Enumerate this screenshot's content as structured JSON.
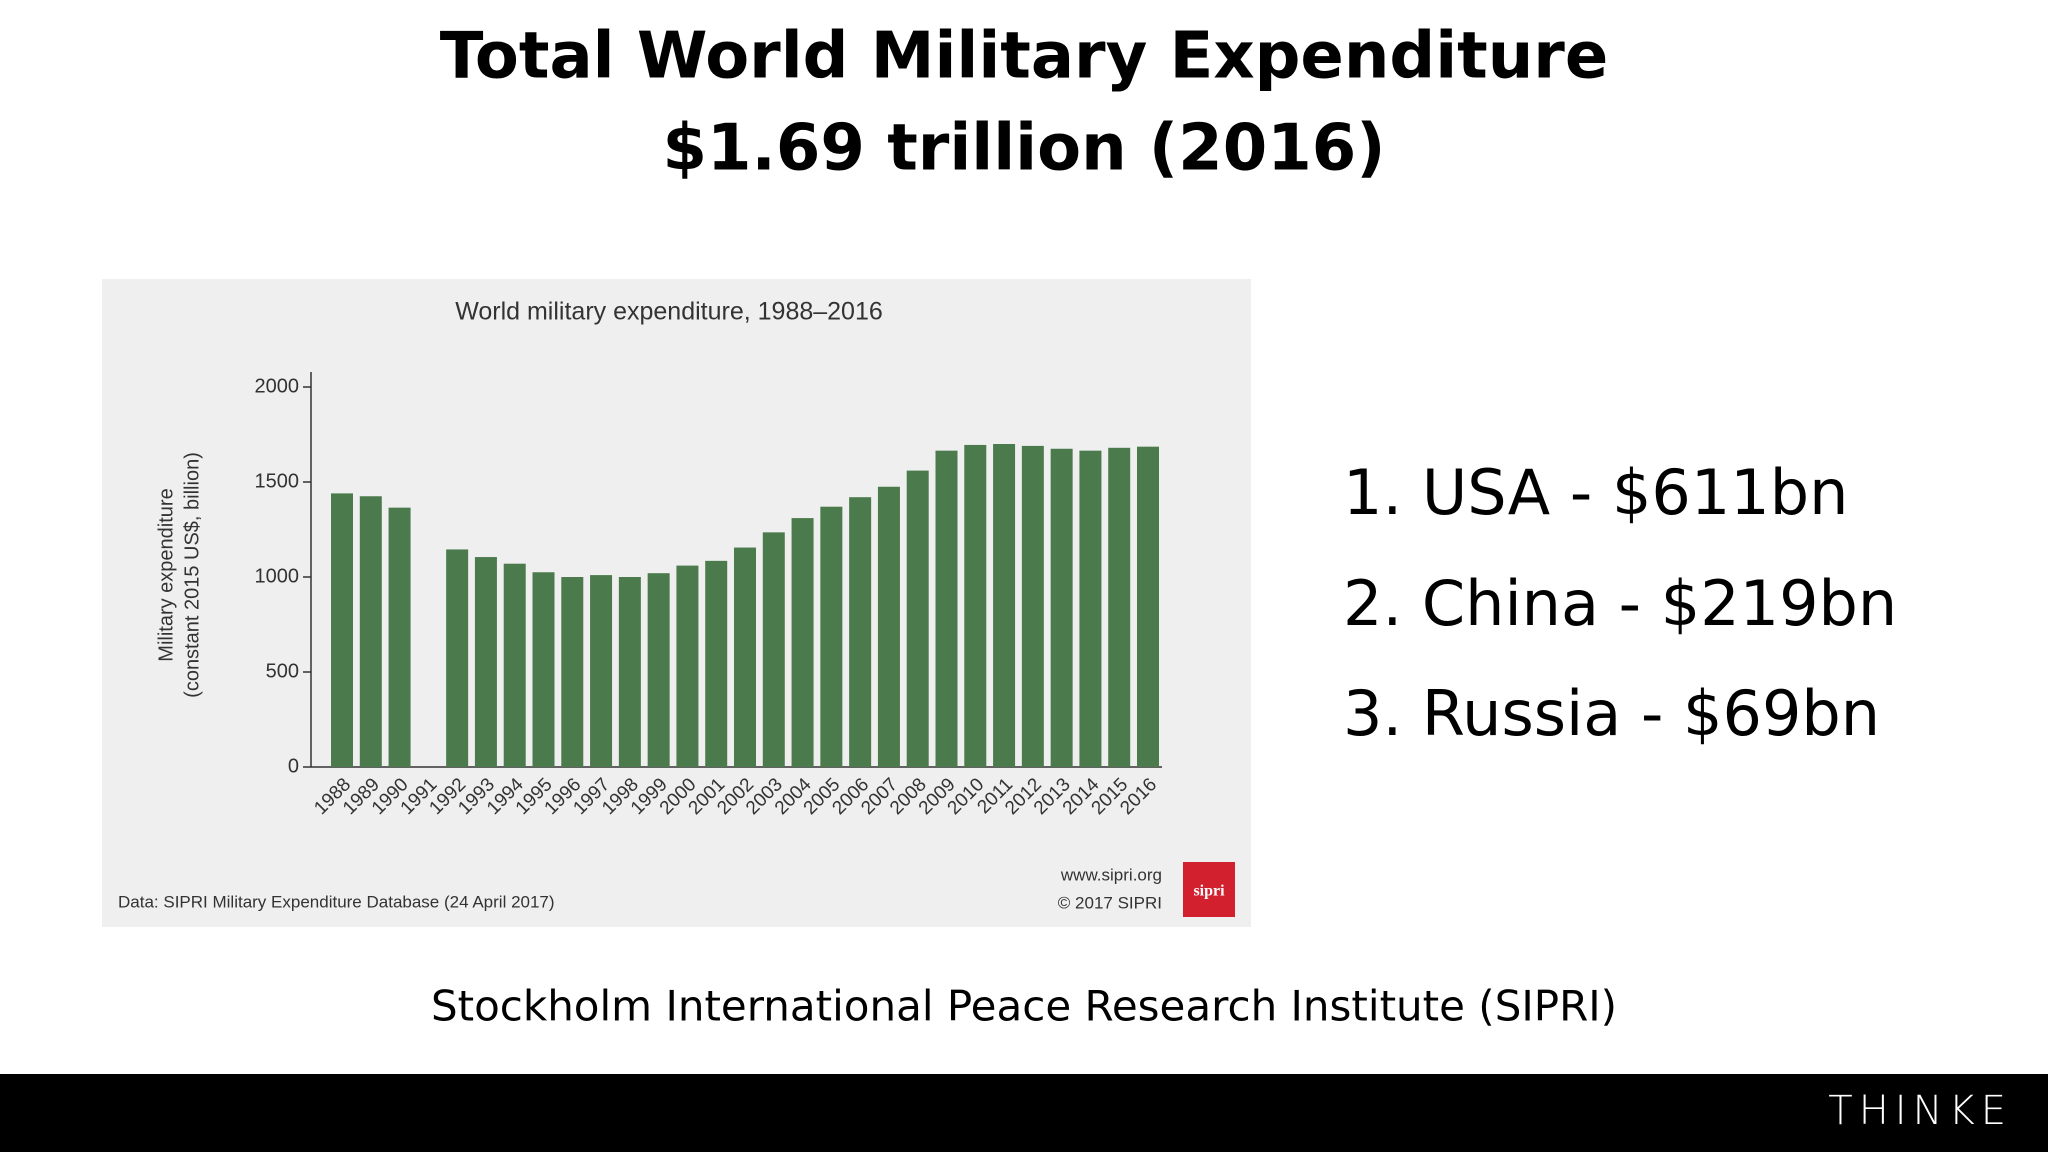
{
  "slide": {
    "title_lines": [
      "Total World Military Expenditure",
      "$1.69 trillion (2016)"
    ],
    "ranking": [
      "1. USA - $611bn",
      "2. China - $219bn",
      "3. Russia - $69bn"
    ],
    "source": "Stockholm International Peace Research Institute (SIPRI)",
    "brand": "THINKE"
  },
  "chart_data": {
    "type": "bar",
    "title": "World military expenditure, 1988–2016",
    "y_label_lines": [
      "Military expenditure",
      "(constant 2015 US$, billion)"
    ],
    "categories": [
      "1988",
      "1989",
      "1990",
      "1991",
      "1992",
      "1993",
      "1994",
      "1995",
      "1996",
      "1997",
      "1998",
      "1999",
      "2000",
      "2001",
      "2002",
      "2003",
      "2004",
      "2005",
      "2006",
      "2007",
      "2008",
      "2009",
      "2010",
      "2011",
      "2012",
      "2013",
      "2014",
      "2015",
      "2016"
    ],
    "values": [
      1440,
      1425,
      1365,
      null,
      1145,
      1105,
      1070,
      1025,
      1000,
      1010,
      1000,
      1020,
      1060,
      1085,
      1155,
      1235,
      1310,
      1370,
      1420,
      1475,
      1560,
      1665,
      1695,
      1700,
      1690,
      1675,
      1665,
      1680,
      1686
    ],
    "color": "#4b7b4c",
    "ylim": [
      0,
      2000
    ],
    "yticks": [
      0,
      500,
      1000,
      1500,
      2000
    ],
    "note": "Data: SIPRI Military Expenditure Database (24 April 2017)",
    "credit_lines": [
      "www.sipri.org",
      "© 2017 SIPRI"
    ],
    "logo": "sipri"
  }
}
